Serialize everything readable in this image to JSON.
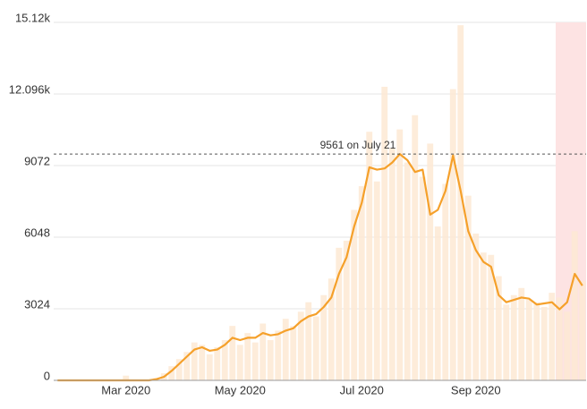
{
  "chart_data": {
    "type": "bar-line",
    "categories": [
      null,
      null,
      null,
      null,
      null,
      null,
      null,
      null,
      null,
      "Mar 2020",
      null,
      null,
      null,
      null,
      null,
      null,
      null,
      null,
      null,
      null,
      null,
      null,
      null,
      null,
      "May 2020",
      null,
      null,
      null,
      null,
      null,
      null,
      null,
      null,
      null,
      null,
      null,
      null,
      null,
      null,
      null,
      "Jul 2020",
      null,
      null,
      null,
      null,
      null,
      null,
      null,
      null,
      null,
      null,
      null,
      null,
      null,
      null,
      "Sep 2020",
      null,
      null,
      null,
      null,
      null,
      null,
      null,
      null,
      null,
      null,
      null,
      null,
      null,
      null
    ],
    "series": [
      {
        "type": "bar",
        "color": "#fde9d4",
        "values": [
          0,
          0,
          0,
          0,
          0,
          0,
          0,
          0,
          0,
          200,
          0,
          0,
          0,
          100,
          300,
          600,
          900,
          1200,
          1600,
          1500,
          1100,
          1400,
          1700,
          2300,
          1500,
          2000,
          1600,
          2400,
          1700,
          2100,
          2600,
          2300,
          2900,
          3300,
          2700,
          3600,
          4300,
          5600,
          5900,
          7200,
          8200,
          10500,
          8400,
          12400,
          9800,
          10600,
          9200,
          11200,
          8600,
          10000,
          6500,
          8300,
          12300,
          15000,
          7800,
          6200,
          5400,
          5300,
          4400,
          3200,
          3600,
          3900,
          3400,
          3300,
          3100,
          3700,
          3500,
          2900,
          6300,
          4200
        ]
      },
      {
        "type": "line",
        "color": "#f5a02a",
        "values": [
          0,
          0,
          0,
          0,
          0,
          0,
          0,
          0,
          0,
          0,
          0,
          0,
          0,
          50,
          150,
          400,
          700,
          1000,
          1300,
          1400,
          1250,
          1300,
          1500,
          1800,
          1700,
          1800,
          1800,
          2000,
          1900,
          1950,
          2100,
          2200,
          2500,
          2700,
          2800,
          3100,
          3500,
          4500,
          5200,
          6500,
          7500,
          9000,
          8900,
          8950,
          9200,
          9561,
          9300,
          8800,
          8900,
          7000,
          7200,
          8000,
          9500,
          8000,
          6300,
          5500,
          5000,
          4800,
          3600,
          3300,
          3400,
          3500,
          3450,
          3200,
          3250,
          3300,
          3000,
          3300,
          4500,
          4000
        ]
      }
    ],
    "ylim": [
      0,
      15120
    ],
    "yticks": [
      0,
      3024,
      6048,
      9072,
      {
        "value": 12096,
        "label": "12.096k"
      },
      {
        "value": 15120,
        "label": "15.12k"
      }
    ],
    "grid": true,
    "reference_line": {
      "value": 9561,
      "label": "9561 on July 21"
    },
    "shaded_from": 66,
    "shaded_color": "#fde3e3"
  }
}
